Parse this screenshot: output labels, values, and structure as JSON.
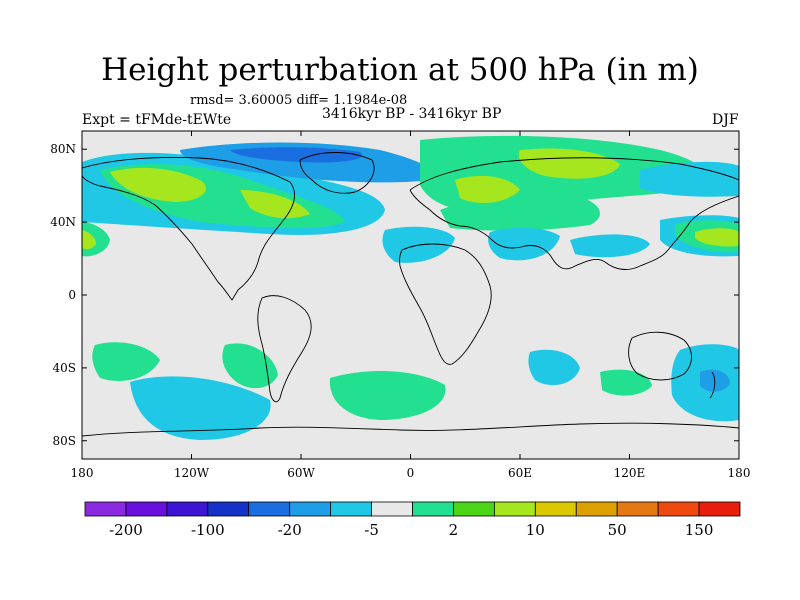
{
  "title": "Height perturbation at 500 hPa (in m)",
  "stats": "rmsd= 3.60005 diff= 1.1984e-08",
  "experiment": "Expt = tFMde-tEWte",
  "period": "3416kyr BP - 3416kyr BP",
  "season": "DJF",
  "map": {
    "lat_ticks": [
      "80N",
      "40N",
      "0",
      "40S",
      "80S"
    ],
    "lon_ticks": [
      "180",
      "120W",
      "60W",
      "0",
      "60E",
      "120E",
      "180"
    ],
    "background_color": "#e8e8e8"
  },
  "colorbar": {
    "colors": [
      "#8a2be2",
      "#6a10dc",
      "#3c14d2",
      "#1432c8",
      "#1a6ee0",
      "#1e9ee6",
      "#20c8e6",
      "#e8e8e8",
      "#22e090",
      "#4cd416",
      "#a6e61e",
      "#dcc800",
      "#dca000",
      "#e67814",
      "#ee4a10",
      "#e61e0a"
    ],
    "labels": [
      "-200",
      "-100",
      "-20",
      "-5",
      "2",
      "10",
      "50",
      "150"
    ]
  }
}
